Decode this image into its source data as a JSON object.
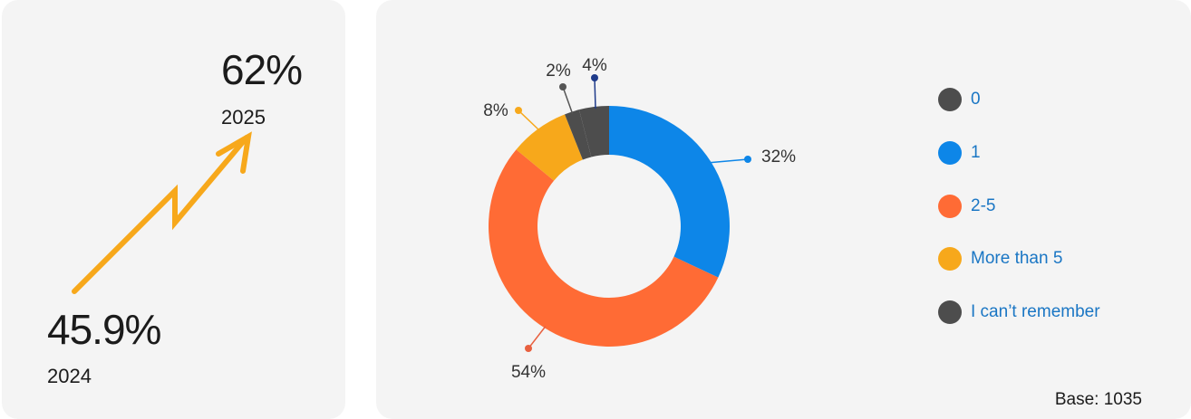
{
  "trend_card": {
    "value_2025": "62%",
    "label_2025": "2025",
    "value_2024": "45.9%",
    "label_2024": "2024",
    "arrow_color": "#f7a81b"
  },
  "chart_data": {
    "type": "pie",
    "donut": true,
    "categories": [
      "1",
      "2-5",
      "More than 5",
      "I can’t remember",
      "0"
    ],
    "values": [
      32,
      54,
      8,
      2,
      4
    ],
    "value_labels": [
      "32%",
      "54%",
      "8%",
      "2%",
      "4%"
    ],
    "colors": [
      "#0d86e8",
      "#ff6b35",
      "#f7a81b",
      "#4d4d4d",
      "#4d4d4d"
    ],
    "start_angle_deg": 0,
    "direction": "clockwise"
  },
  "legend": [
    {
      "label": "0",
      "color": "#4d4d4d"
    },
    {
      "label": "1",
      "color": "#0d86e8"
    },
    {
      "label": "2-5",
      "color": "#ff6b35"
    },
    {
      "label": "More than 5",
      "color": "#f7a81b"
    },
    {
      "label": "I can’t remember",
      "color": "#4d4d4d"
    }
  ],
  "leader_colors": [
    "#0d86e8",
    "#e8603f",
    "#f7a81b",
    "#555555",
    "#1e3a8a"
  ],
  "base_text": "Base: 1035"
}
